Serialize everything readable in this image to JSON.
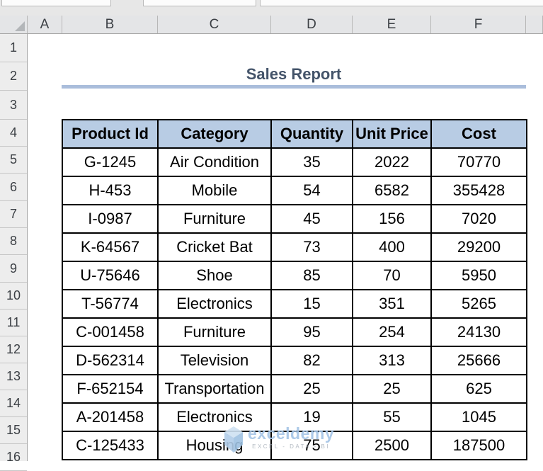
{
  "grid": {
    "columns": [
      "A",
      "B",
      "C",
      "D",
      "E",
      "F",
      ""
    ],
    "rows": [
      "1",
      "2",
      "3",
      "4",
      "5",
      "6",
      "7",
      "8",
      "9",
      "10",
      "11",
      "12",
      "13",
      "14",
      "15",
      "16"
    ]
  },
  "title": {
    "text": "Sales Report"
  },
  "table": {
    "headers": [
      "Product Id",
      "Category",
      "Quantity",
      "Unit Price",
      "Cost"
    ],
    "rows": [
      [
        "G-1245",
        "Air Condition",
        "35",
        "2022",
        "70770"
      ],
      [
        "H-453",
        "Mobile",
        "54",
        "6582",
        "355428"
      ],
      [
        "I-0987",
        "Furniture",
        "45",
        "156",
        "7020"
      ],
      [
        "K-64567",
        "Cricket Bat",
        "73",
        "400",
        "29200"
      ],
      [
        "U-75646",
        "Shoe",
        "85",
        "70",
        "5950"
      ],
      [
        "T-56774",
        "Electronics",
        "15",
        "351",
        "5265"
      ],
      [
        "C-001458",
        "Furniture",
        "95",
        "254",
        "24130"
      ],
      [
        "D-562314",
        "Television",
        "82",
        "313",
        "25666"
      ],
      [
        "F-652154",
        "Transportation",
        "25",
        "25",
        "625"
      ],
      [
        "A-201458",
        "Electronics",
        "19",
        "55",
        "1045"
      ],
      [
        "C-125433",
        "Housing",
        "75",
        "2500",
        "187500"
      ]
    ]
  },
  "watermark": {
    "brand": "exceldemy",
    "tagline": "EXCEL - DATA - BI"
  },
  "colors": {
    "title_text": "#44546A",
    "title_underline": "#AABDDB",
    "table_header_fill": "#B8CCE4",
    "table_border": "#000000",
    "watermark_blue": "#A4C4E6",
    "header_gray": "#E4E5E7"
  }
}
